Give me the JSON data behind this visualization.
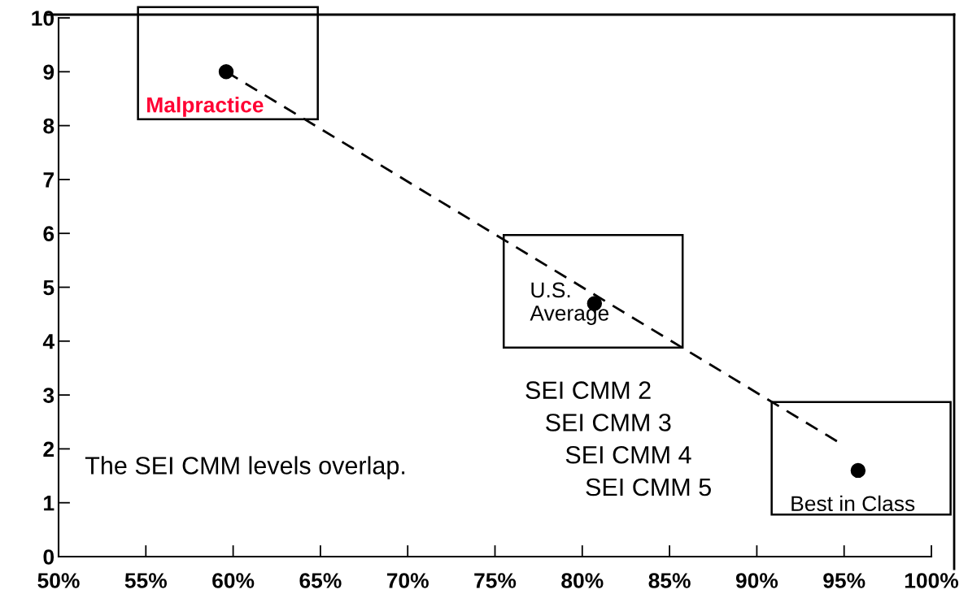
{
  "chart_data": {
    "type": "scatter",
    "xlim": [
      50,
      100
    ],
    "ylim": [
      0,
      10
    ],
    "xticks": [
      {
        "value": 50,
        "label": "50%"
      },
      {
        "value": 55,
        "label": "55%"
      },
      {
        "value": 60,
        "label": "60%"
      },
      {
        "value": 65,
        "label": "65%"
      },
      {
        "value": 70,
        "label": "70%"
      },
      {
        "value": 75,
        "label": "75%"
      },
      {
        "value": 80,
        "label": "80%"
      },
      {
        "value": 85,
        "label": "85%"
      },
      {
        "value": 90,
        "label": "90%"
      },
      {
        "value": 95,
        "label": "95%"
      },
      {
        "value": 100,
        "label": "100%"
      }
    ],
    "yticks": [
      0,
      1,
      2,
      3,
      4,
      5,
      6,
      7,
      8,
      9,
      10
    ],
    "grid": false,
    "marker": "circle",
    "series": [
      {
        "color": "#000000",
        "x": [
          59.6,
          80.7,
          95.8
        ],
        "values": [
          9.0,
          4.7,
          1.6
        ]
      },
      {
        "type": "line",
        "color": "#000000",
        "line_style": "dashed",
        "marker": "none",
        "x": [
          59.6,
          94.8
        ],
        "values": [
          9.0,
          2.1
        ]
      }
    ],
    "annotations": [
      {
        "text": "Malpractice",
        "x": 59.6,
        "y": 9.0
      },
      {
        "text": "U.S.\nAverage",
        "x": 80.7,
        "y": 4.7
      },
      {
        "text": "Best in Class",
        "x": 95.8,
        "y": 1.6
      },
      "SEI CMM 2",
      "SEI CMM 3",
      "SEI CMM 4",
      "SEI CMM 5",
      "The SEI CMM levels overlap."
    ]
  }
}
